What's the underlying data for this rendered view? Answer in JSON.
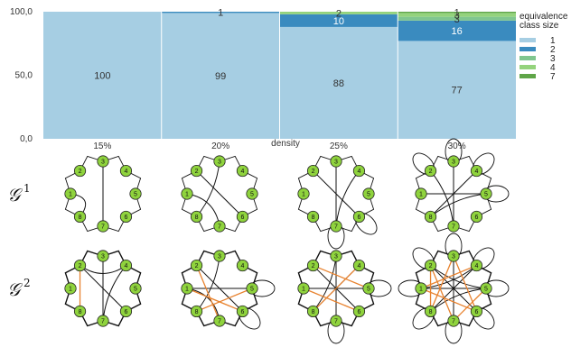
{
  "chart_data": {
    "type": "bar",
    "stacked": true,
    "xlabel": "density",
    "categories": [
      "15%",
      "20%",
      "25%",
      "30%"
    ],
    "ylim": [
      0,
      100
    ],
    "yticks": [
      "0,0",
      "50,0",
      "100,0"
    ],
    "legend_title": "equivalence class size",
    "legend_placement": "right",
    "series": [
      {
        "name": "1",
        "color": "#a6cee3",
        "values": [
          100,
          99,
          88,
          77
        ],
        "labels": [
          "100",
          "99",
          "88",
          "77"
        ]
      },
      {
        "name": "2",
        "color": "#3a8bbf",
        "values": [
          0,
          1,
          10,
          16
        ],
        "labels": [
          "",
          "1",
          "10",
          "16"
        ]
      },
      {
        "name": "3",
        "color": "#7fc68f",
        "values": [
          0,
          0,
          0,
          3
        ],
        "labels": [
          "",
          "",
          "",
          "3"
        ]
      },
      {
        "name": "4",
        "color": "#94d37c",
        "values": [
          0,
          0,
          2,
          3
        ],
        "labels": [
          "",
          "",
          "2",
          "3"
        ]
      },
      {
        "name": "7",
        "color": "#5fa548",
        "values": [
          0,
          0,
          0,
          1
        ],
        "labels": [
          "",
          "",
          "",
          "1"
        ]
      }
    ]
  },
  "graphs": {
    "row_labels": [
      {
        "base": "𝒢",
        "sup": "1"
      },
      {
        "base": "𝒢",
        "sup": "2"
      }
    ],
    "node_labels": [
      "1",
      "2",
      "3",
      "4",
      "5",
      "6",
      "7",
      "8"
    ],
    "node_color": "#8fd33d",
    "highlight_edge_color": "#e8822e",
    "rows": [
      [
        {
          "edges": [
            [
              1,
              8
            ],
            [
              3,
              7
            ]
          ],
          "highlight": [],
          "loops": []
        },
        {
          "edges": [
            [
              3,
              8
            ],
            [
              2,
              6
            ],
            [
              1,
              7
            ]
          ],
          "highlight": [],
          "loops": []
        },
        {
          "edges": [
            [
              3,
              7
            ],
            [
              2,
              6
            ],
            [
              4,
              7
            ]
          ],
          "highlight": [],
          "loops": [
            6,
            7
          ]
        },
        {
          "edges": [
            [
              1,
              5
            ],
            [
              4,
              8
            ],
            [
              7,
              3
            ],
            [
              2,
              7
            ],
            [
              8,
              5
            ]
          ],
          "highlight": [],
          "loops": [
            2,
            3,
            4,
            5
          ]
        }
      ],
      [
        {
          "edges": [
            [
              2,
              6
            ],
            [
              4,
              7
            ],
            [
              3,
              7
            ],
            [
              2,
              4
            ]
          ],
          "highlight": [
            [
              8,
              2
            ]
          ],
          "loops": []
        },
        {
          "edges": [
            [
              3,
              8
            ],
            [
              2,
              6
            ],
            [
              1,
              7
            ],
            [
              1,
              5
            ]
          ],
          "highlight": [
            [
              8,
              5
            ],
            [
              1,
              6
            ],
            [
              2,
              7
            ]
          ],
          "loops": [
            5,
            6
          ]
        },
        {
          "edges": [
            [
              3,
              7
            ],
            [
              2,
              6
            ],
            [
              1,
              5
            ],
            [
              4,
              8
            ],
            [
              3,
              8
            ]
          ],
          "highlight": [
            [
              2,
              5
            ],
            [
              8,
              4
            ],
            [
              1,
              6
            ]
          ],
          "loops": [
            5,
            7
          ]
        },
        {
          "edges": [
            [
              1,
              5
            ],
            [
              4,
              8
            ],
            [
              2,
              6
            ],
            [
              3,
              7
            ],
            [
              1,
              4
            ],
            [
              5,
              8
            ],
            [
              2,
              5
            ]
          ],
          "highlight": [
            [
              1,
              6
            ],
            [
              2,
              7
            ],
            [
              3,
              8
            ],
            [
              4,
              1
            ],
            [
              6,
              3
            ],
            [
              8,
              2
            ],
            [
              7,
              5
            ]
          ],
          "loops": [
            2,
            3,
            4,
            5,
            6,
            7,
            8,
            1
          ]
        }
      ]
    ]
  }
}
